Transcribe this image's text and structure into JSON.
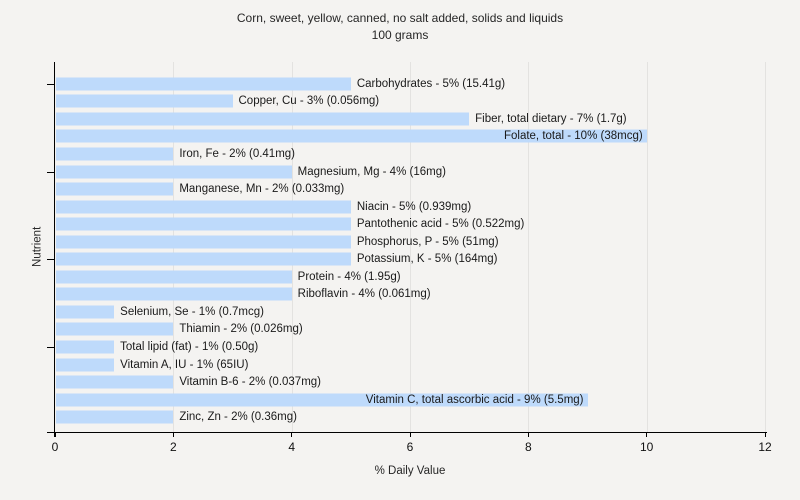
{
  "page": {
    "background_color": "#f4f3f1",
    "text_color": "#1a1a1a"
  },
  "chart_data": {
    "type": "bar",
    "orientation": "horizontal",
    "title": "Corn, sweet, yellow, canned, no salt added, solids and liquids",
    "subtitle": "100 grams",
    "xlabel": "% Daily Value",
    "ylabel": "Nutrient",
    "xlim": [
      0,
      12
    ],
    "xticks": [
      0,
      2,
      4,
      6,
      8,
      10,
      12
    ],
    "grid": "vertical-gridlines-only",
    "legend_position": "none",
    "bar_color": "#bedafb",
    "gridline_color": "#e3e2e0",
    "axis_color": "#000000",
    "categories": [
      "Carbohydrates",
      "Copper, Cu",
      "Fiber, total dietary",
      "Folate, total",
      "Iron, Fe",
      "Magnesium, Mg",
      "Manganese, Mn",
      "Niacin",
      "Pantothenic acid",
      "Phosphorus, P",
      "Potassium, K",
      "Protein",
      "Riboflavin",
      "Selenium, Se",
      "Thiamin",
      "Total lipid (fat)",
      "Vitamin A, IU",
      "Vitamin B-6",
      "Vitamin C, total ascorbic acid",
      "Zinc, Zn"
    ],
    "values": [
      5,
      3,
      7,
      10,
      2,
      4,
      2,
      5,
      5,
      5,
      5,
      4,
      4,
      1,
      2,
      1,
      1,
      2,
      9,
      2
    ],
    "bars": [
      {
        "name": "Carbohydrates",
        "percent": 5,
        "amount": "15.41g",
        "label_inside": false
      },
      {
        "name": "Copper, Cu",
        "percent": 3,
        "amount": "0.056mg",
        "label_inside": false
      },
      {
        "name": "Fiber, total dietary",
        "percent": 7,
        "amount": "1.7g",
        "label_inside": false
      },
      {
        "name": "Folate, total",
        "percent": 10,
        "amount": "38mcg",
        "label_inside": true
      },
      {
        "name": "Iron, Fe",
        "percent": 2,
        "amount": "0.41mg",
        "label_inside": false
      },
      {
        "name": "Magnesium, Mg",
        "percent": 4,
        "amount": "16mg",
        "label_inside": false
      },
      {
        "name": "Manganese, Mn",
        "percent": 2,
        "amount": "0.033mg",
        "label_inside": false
      },
      {
        "name": "Niacin",
        "percent": 5,
        "amount": "0.939mg",
        "label_inside": false
      },
      {
        "name": "Pantothenic acid",
        "percent": 5,
        "amount": "0.522mg",
        "label_inside": false
      },
      {
        "name": "Phosphorus, P",
        "percent": 5,
        "amount": "51mg",
        "label_inside": false
      },
      {
        "name": "Potassium, K",
        "percent": 5,
        "amount": "164mg",
        "label_inside": false
      },
      {
        "name": "Protein",
        "percent": 4,
        "amount": "1.95g",
        "label_inside": false
      },
      {
        "name": "Riboflavin",
        "percent": 4,
        "amount": "0.061mg",
        "label_inside": false
      },
      {
        "name": "Selenium, Se",
        "percent": 1,
        "amount": "0.7mcg",
        "label_inside": false
      },
      {
        "name": "Thiamin",
        "percent": 2,
        "amount": "0.026mg",
        "label_inside": false
      },
      {
        "name": "Total lipid (fat)",
        "percent": 1,
        "amount": "0.50g",
        "label_inside": false
      },
      {
        "name": "Vitamin A, IU",
        "percent": 1,
        "amount": "65IU",
        "label_inside": false
      },
      {
        "name": "Vitamin B-6",
        "percent": 2,
        "amount": "0.037mg",
        "label_inside": false
      },
      {
        "name": "Vitamin C, total ascorbic acid",
        "percent": 9,
        "amount": "5.5mg",
        "label_inside": true
      },
      {
        "name": "Zinc, Zn",
        "percent": 2,
        "amount": "0.36mg",
        "label_inside": false
      }
    ],
    "label_format": "{name} - {percent}% ({amount})",
    "ytick_category_numbers": [
      1,
      6,
      11,
      16
    ]
  }
}
